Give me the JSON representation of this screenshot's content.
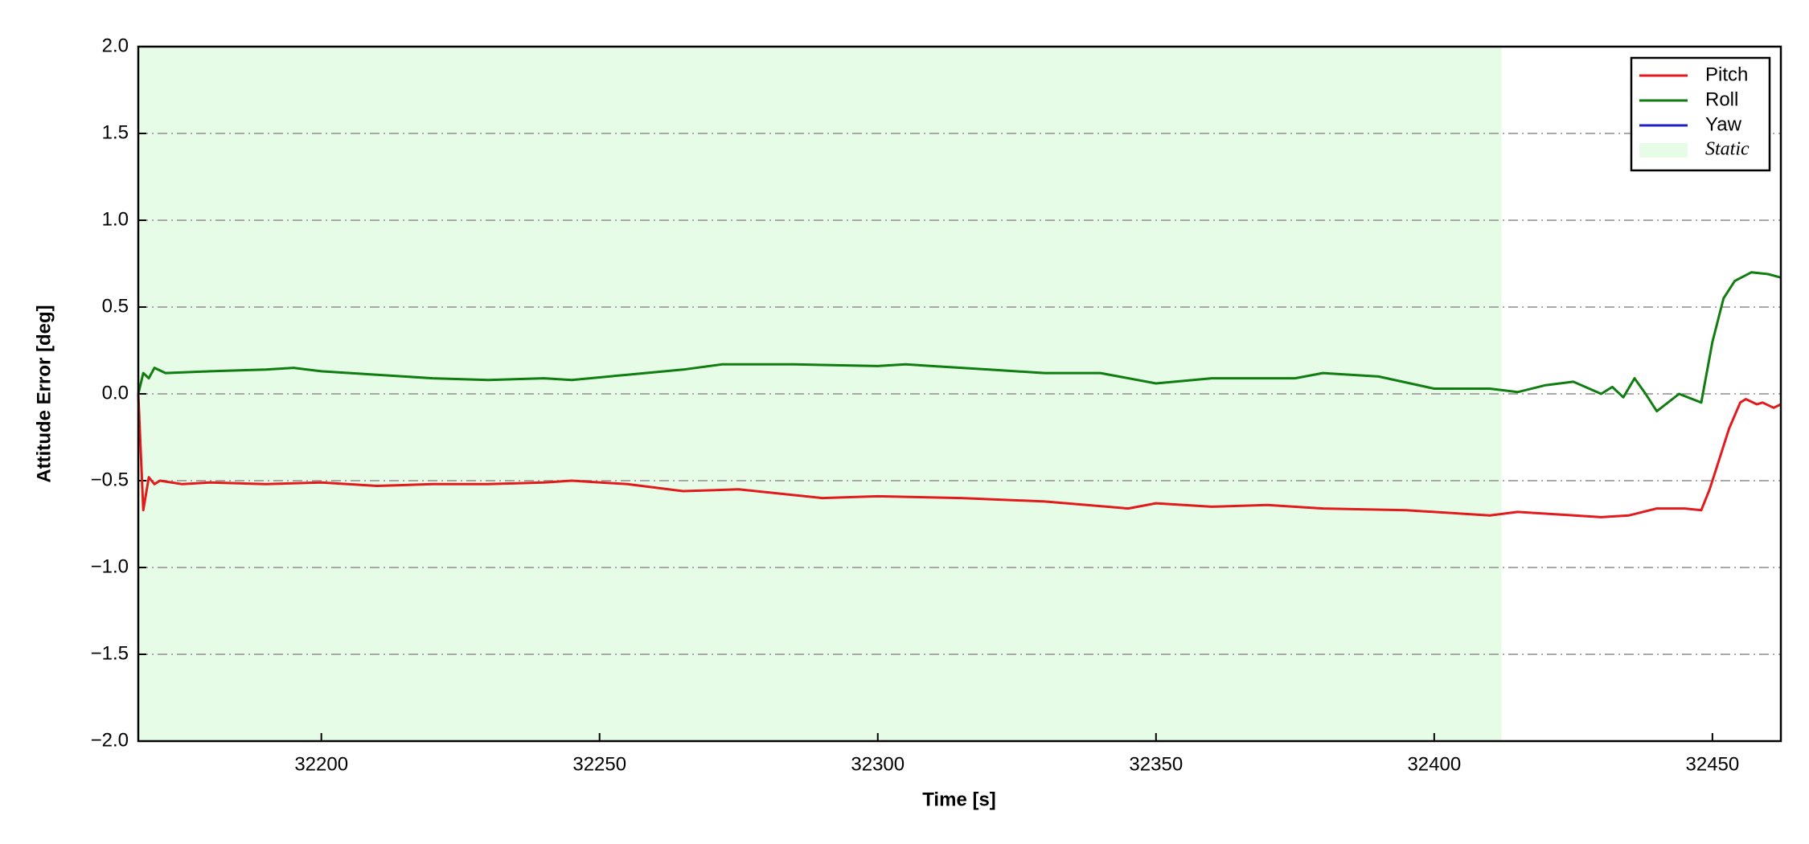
{
  "chart_data": {
    "type": "line",
    "xlabel": "Time [s]",
    "ylabel": "Attitude Error [deg]",
    "xlim": [
      32167.1,
      32462.3
    ],
    "ylim": [
      -2,
      2
    ],
    "xticks": [
      32200,
      32250,
      32300,
      32350,
      32400,
      32450
    ],
    "yticks": [
      {
        "value": -2,
        "label": "−2.0"
      },
      {
        "value": -1.5,
        "label": "−1.5"
      },
      {
        "value": -1,
        "label": "−1.0"
      },
      {
        "value": -0.5,
        "label": "−0.5"
      },
      {
        "value": 0,
        "label": "0.0"
      },
      0.5,
      {
        "value": 1,
        "label": "1.0"
      },
      1.5,
      {
        "value": 2,
        "label": "2.0"
      }
    ],
    "grid": true,
    "legend": "upper right",
    "spans": [
      {
        "name": "Static",
        "start": 32167.1,
        "end": 32412.1,
        "color": "#e6fce6"
      }
    ],
    "series": [
      {
        "name": "Pitch",
        "color": "#e31a1c",
        "x": [
          32167.1,
          32168,
          32169,
          32170,
          32171,
          32175,
          32180,
          32190,
          32200,
          32210,
          32220,
          32230,
          32240,
          32245,
          32255,
          32265,
          32275,
          32290,
          32300,
          32315,
          32330,
          32345,
          32350,
          32360,
          32370,
          32380,
          32395,
          32410,
          32415,
          32420,
          32430,
          32435,
          32440,
          32445,
          32448,
          32449.5,
          32451,
          32453,
          32455,
          32456,
          32458,
          32459,
          32461,
          32462.3
        ],
        "values": [
          0,
          -0.67,
          -0.48,
          -0.52,
          -0.5,
          -0.52,
          -0.51,
          -0.52,
          -0.51,
          -0.53,
          -0.52,
          -0.52,
          -0.51,
          -0.5,
          -0.52,
          -0.56,
          -0.55,
          -0.6,
          -0.59,
          -0.6,
          -0.62,
          -0.66,
          -0.63,
          -0.65,
          -0.64,
          -0.66,
          -0.67,
          -0.7,
          -0.68,
          -0.69,
          -0.71,
          -0.7,
          -0.66,
          -0.66,
          -0.67,
          -0.55,
          -0.4,
          -0.2,
          -0.05,
          -0.03,
          -0.06,
          -0.05,
          -0.08,
          -0.06
        ]
      },
      {
        "name": "Roll",
        "color": "#107d10",
        "x": [
          32167.1,
          32168,
          32169,
          32170,
          32172,
          32180,
          32190,
          32195,
          32200,
          32210,
          32220,
          32230,
          32240,
          32245,
          32255,
          32265,
          32272,
          32285,
          32300,
          32305,
          32320,
          32330,
          32340,
          32350,
          32360,
          32375,
          32380,
          32390,
          32400,
          32410,
          32415,
          32420,
          32425,
          32430,
          32432,
          32434,
          32436,
          32438,
          32440,
          32444,
          32448,
          32450,
          32452,
          32454,
          32457,
          32460,
          32462.3
        ],
        "values": [
          0,
          0.12,
          0.09,
          0.15,
          0.12,
          0.13,
          0.14,
          0.15,
          0.13,
          0.11,
          0.09,
          0.08,
          0.09,
          0.08,
          0.11,
          0.14,
          0.17,
          0.17,
          0.16,
          0.17,
          0.14,
          0.12,
          0.12,
          0.06,
          0.09,
          0.09,
          0.12,
          0.1,
          0.03,
          0.03,
          0.01,
          0.05,
          0.07,
          0,
          0.04,
          -0.02,
          0.09,
          0,
          -0.1,
          0,
          -0.05,
          0.3,
          0.55,
          0.65,
          0.7,
          0.69,
          0.67
        ]
      },
      {
        "name": "Yaw",
        "color": "#1f1fbf",
        "x": [],
        "values": []
      }
    ]
  }
}
